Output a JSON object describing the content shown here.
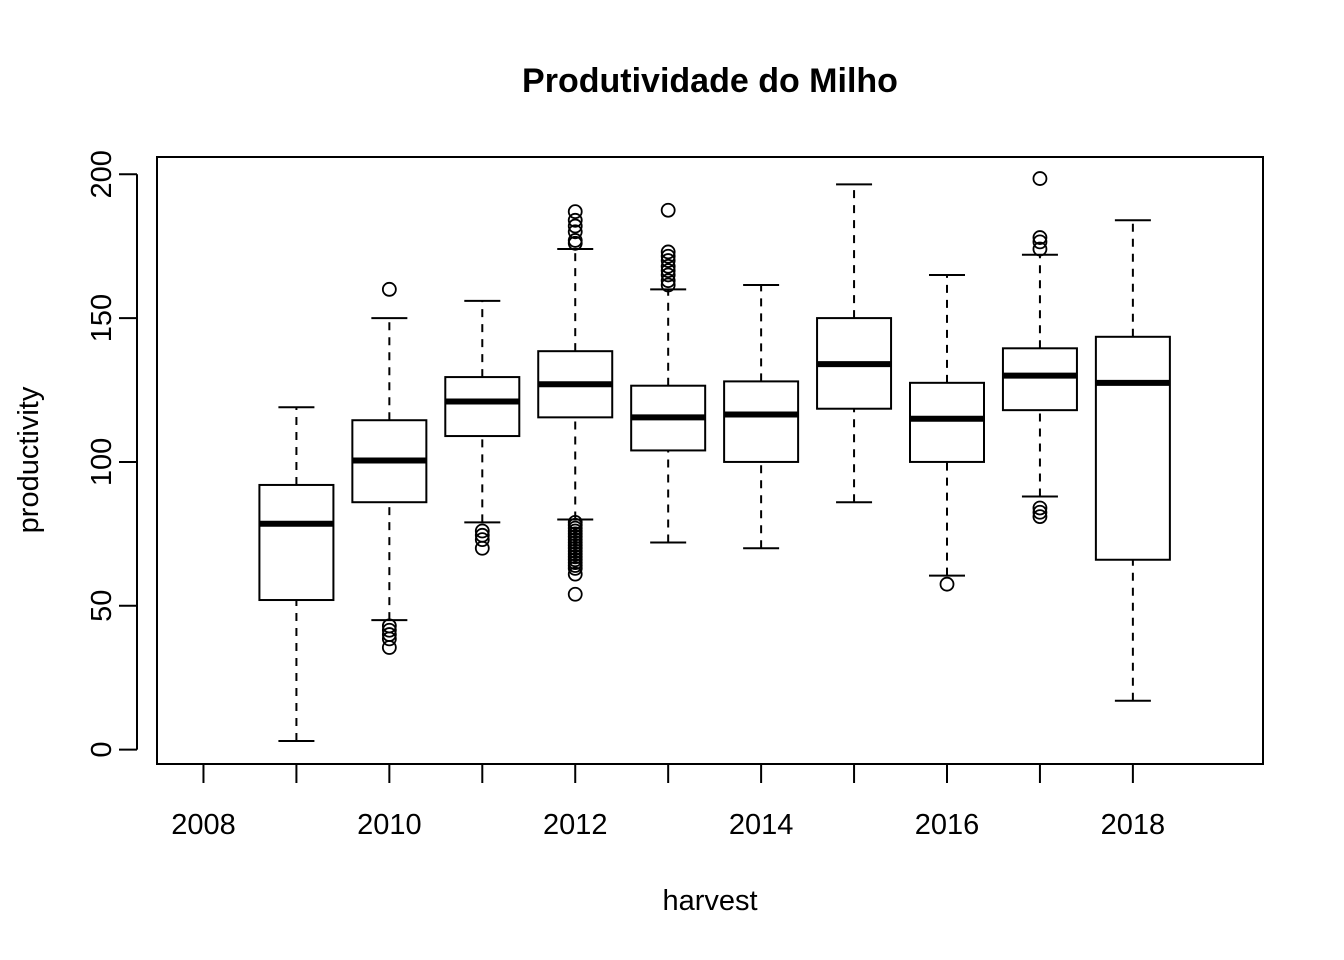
{
  "chart_data": {
    "type": "boxplot",
    "title": "Produtividade do Milho",
    "xlabel": "harvest",
    "ylabel": "productivity",
    "xlim": [
      2007.5,
      2019.4
    ],
    "ylim": [
      -5,
      206
    ],
    "x_ticks": [
      2008,
      2009,
      2010,
      2011,
      2012,
      2013,
      2014,
      2015,
      2016,
      2017,
      2018
    ],
    "x_tick_labels": [
      "2008",
      "",
      "2010",
      "",
      "2012",
      "",
      "2014",
      "",
      "2016",
      "",
      "2018"
    ],
    "y_ticks": [
      0,
      50,
      100,
      150,
      200
    ],
    "y_tick_labels": [
      "0",
      "50",
      "100",
      "150",
      "200"
    ],
    "grid": false,
    "legend": "none",
    "boxes": [
      {
        "x": 2008,
        "empty": true
      },
      {
        "x": 2009,
        "whisker_low": 3,
        "q1": 52,
        "median": 78.5,
        "q3": 92,
        "whisker_high": 119,
        "outliers": []
      },
      {
        "x": 2010,
        "whisker_low": 45,
        "q1": 86,
        "median": 100.5,
        "q3": 114.5,
        "whisker_high": 150,
        "outliers": [
          43,
          41.5,
          40,
          38.5,
          35.5,
          160
        ]
      },
      {
        "x": 2011,
        "whisker_low": 79,
        "q1": 109,
        "median": 121,
        "q3": 129.5,
        "whisker_high": 156,
        "outliers": [
          76,
          74.5,
          73,
          70
        ]
      },
      {
        "x": 2012,
        "whisker_low": 80,
        "q1": 115.5,
        "median": 127,
        "q3": 138.5,
        "whisker_high": 174,
        "outliers": [
          79,
          78,
          77,
          76,
          75,
          74,
          73,
          72,
          71,
          70,
          69,
          68,
          67,
          66,
          65,
          64,
          63,
          61,
          54,
          176,
          177,
          180,
          182,
          184,
          187
        ]
      },
      {
        "x": 2013,
        "whisker_low": 72,
        "q1": 104,
        "median": 115.5,
        "q3": 126.5,
        "whisker_high": 160,
        "outliers": [
          161.5,
          163,
          165,
          166.5,
          168,
          170,
          171.5,
          173,
          187.5
        ]
      },
      {
        "x": 2014,
        "whisker_low": 70,
        "q1": 100,
        "median": 116.5,
        "q3": 128,
        "whisker_high": 161.5,
        "outliers": []
      },
      {
        "x": 2015,
        "whisker_low": 86,
        "q1": 118.5,
        "median": 134,
        "q3": 150,
        "whisker_high": 196.5,
        "outliers": []
      },
      {
        "x": 2016,
        "whisker_low": 60.5,
        "q1": 100,
        "median": 115,
        "q3": 127.5,
        "whisker_high": 165,
        "outliers": [
          57.5
        ]
      },
      {
        "x": 2017,
        "whisker_low": 88,
        "q1": 118,
        "median": 130,
        "q3": 139.5,
        "whisker_high": 172,
        "outliers": [
          84,
          82.5,
          81,
          174,
          176.5,
          178,
          198.5
        ]
      },
      {
        "x": 2018,
        "whisker_low": 17,
        "q1": 66,
        "median": 127.5,
        "q3": 143.5,
        "whisker_high": 184,
        "outliers": []
      }
    ]
  }
}
